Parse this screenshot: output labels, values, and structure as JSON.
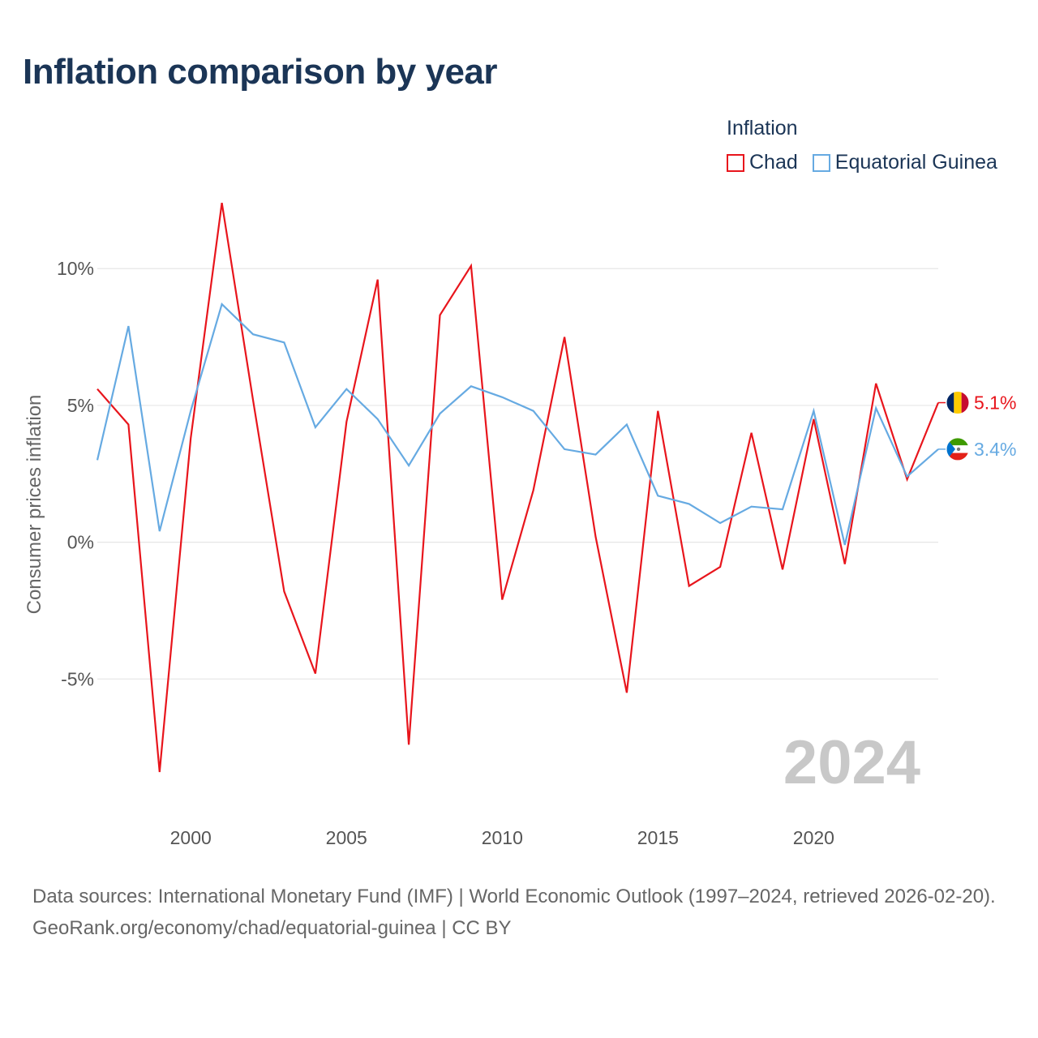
{
  "title": "Inflation comparison by year",
  "legend": {
    "title": "Inflation",
    "items": [
      {
        "label": "Chad",
        "color": "#e8151c"
      },
      {
        "label": "Equatorial Guinea",
        "color": "#66aae2"
      }
    ]
  },
  "watermark_year": "2024",
  "footer": {
    "sources": "Data sources: International Monetary Fund (IMF) | World Economic Outlook (1997–2024, retrieved 2026-02-20).",
    "credit": "GeoRank.org/economy/chad/equatorial-guinea | CC BY"
  },
  "chart_data": {
    "type": "line",
    "title": "Inflation comparison by year",
    "xlabel": "",
    "ylabel": "Consumer prices inflation",
    "x": [
      1997,
      1998,
      1999,
      2000,
      2001,
      2002,
      2003,
      2004,
      2005,
      2006,
      2007,
      2008,
      2009,
      2010,
      2011,
      2012,
      2013,
      2014,
      2015,
      2016,
      2017,
      2018,
      2019,
      2020,
      2021,
      2022,
      2023,
      2024
    ],
    "xlim": [
      1997,
      2024
    ],
    "ylim": [
      -10,
      13
    ],
    "x_ticks": [
      2000,
      2005,
      2010,
      2015,
      2020
    ],
    "y_ticks": [
      {
        "value": -5,
        "label": "-5%"
      },
      {
        "value": 0,
        "label": "0%"
      },
      {
        "value": 5,
        "label": "5%"
      },
      {
        "value": 10,
        "label": "10%"
      }
    ],
    "grid": true,
    "series": [
      {
        "name": "Chad",
        "color": "#e8151c",
        "end_label": "5.1%",
        "values": [
          5.6,
          4.3,
          -8.4,
          3.8,
          12.4,
          5.2,
          -1.8,
          -4.8,
          4.4,
          9.6,
          -7.4,
          8.3,
          10.1,
          -2.1,
          1.9,
          7.5,
          0.2,
          -5.5,
          4.8,
          -1.6,
          -0.9,
          4.0,
          -1.0,
          4.5,
          -0.8,
          5.8,
          2.3,
          5.1
        ]
      },
      {
        "name": "Equatorial Guinea",
        "color": "#66aae2",
        "end_label": "3.4%",
        "values": [
          3.0,
          7.9,
          0.4,
          4.8,
          8.7,
          7.6,
          7.3,
          4.2,
          5.6,
          4.5,
          2.8,
          4.7,
          5.7,
          5.3,
          4.8,
          3.4,
          3.2,
          4.3,
          1.7,
          1.4,
          0.7,
          1.3,
          1.2,
          4.8,
          -0.1,
          4.9,
          2.4,
          3.4
        ]
      }
    ]
  }
}
